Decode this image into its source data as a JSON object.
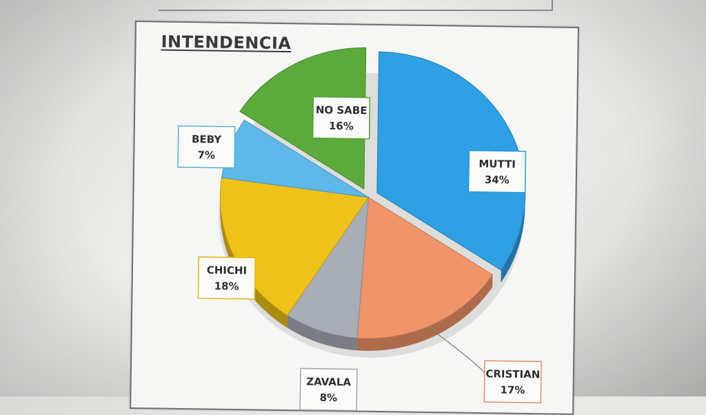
{
  "chart_data": {
    "type": "pie",
    "title": "INTENDENCIA",
    "categories": [
      "MUTTI",
      "CRISTIAN",
      "ZAVALA",
      "CHICHI",
      "BEBY",
      "NO SABE"
    ],
    "values": [
      34,
      17,
      8,
      18,
      7,
      16
    ],
    "value_labels": [
      "34%",
      "17%",
      "8%",
      "18%",
      "7%",
      "16%"
    ],
    "colors": [
      "#2f9fe4",
      "#f0956a",
      "#a9adb5",
      "#eec21a",
      "#5eb8e8",
      "#5aaa3c"
    ],
    "exploded": [
      "MUTTI",
      "NO SABE"
    ],
    "legend": "none",
    "style": "3d"
  }
}
